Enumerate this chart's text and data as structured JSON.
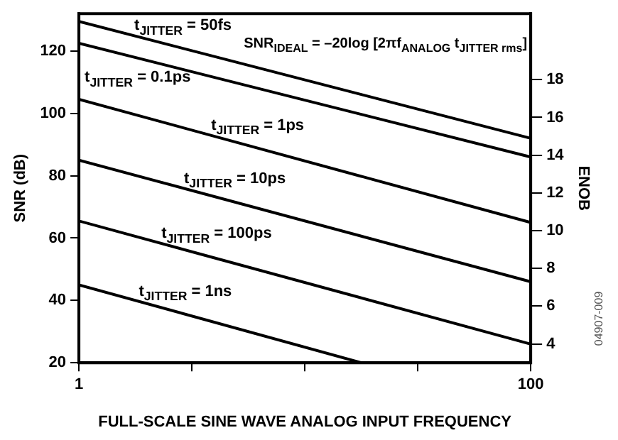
{
  "chart_data": {
    "type": "line",
    "xlabel": "FULL-SCALE SINE WAVE ANALOG INPUT FREQUENCY",
    "ylabel": "SNR (dB)",
    "y2label": "ENOB",
    "log": "x",
    "grid": false,
    "legend": false,
    "marker": "none",
    "line_style": "solid",
    "tick_labels": [
      "x",
      "y",
      "y2"
    ],
    "xlim": [
      1,
      100
    ],
    "xticks": [
      1,
      {
        "value": 3.16,
        "label": null
      },
      {
        "value": 10,
        "label": null
      },
      {
        "value": 31.6,
        "label": null
      },
      100
    ],
    "ylim": [
      20,
      132
    ],
    "yticks": [
      20,
      40,
      60,
      80,
      100,
      120
    ],
    "y2lim": [
      3,
      21.5
    ],
    "y2ticks": [
      4,
      6,
      8,
      10,
      12,
      14,
      16,
      18
    ],
    "x": [
      1,
      100
    ],
    "series": [
      {
        "name": "t$_{JITTER}$ = 50fs",
        "color": "#000000",
        "values": [
          129.5,
          92
        ]
      },
      {
        "name": "t$_{JITTER}$ = 0.1ps",
        "color": "#000000",
        "values": [
          122.5,
          86
        ]
      },
      {
        "name": "t$_{JITTER}$ = 1ps",
        "color": "#000000",
        "values": [
          104.5,
          65
        ]
      },
      {
        "name": "t$_{JITTER}$ = 10ps",
        "color": "#000000",
        "values": [
          85,
          46
        ]
      },
      {
        "name": "t$_{JITTER}$ = 100ps",
        "color": "#000000",
        "values": [
          65.5,
          26
        ]
      },
      {
        "name": "t$_{JITTER}$ = 1ns",
        "color": "#000000",
        "x": [
          1,
          17.8
        ],
        "values": [
          45,
          20
        ]
      }
    ],
    "annotations": [
      "SNR$_{IDEAL}$ = –20log [2πf$_{ANALOG}$ t$_{JITTER rms}$]",
      "04907-009"
    ]
  }
}
